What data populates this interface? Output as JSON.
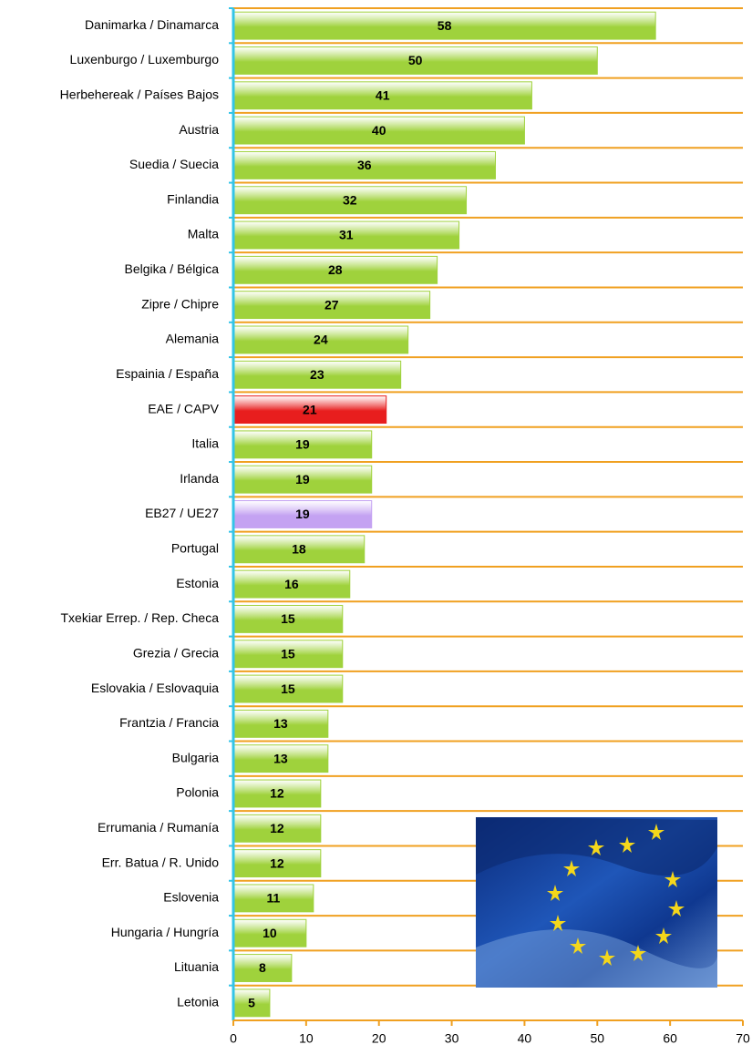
{
  "chart_data": {
    "type": "barh",
    "categories": [
      "Danimarka / Dinamarca",
      "Luxenburgo / Luxemburgo",
      "Herbehereak / Países Bajos",
      "Austria",
      "Suedia / Suecia",
      "Finlandia",
      "Malta",
      "Belgika / Bélgica",
      "Zipre / Chipre",
      "Alemania",
      "Espainia / España",
      "EAE / CAPV",
      "Italia",
      "Irlanda",
      "EB27 / UE27",
      "Portugal",
      "Estonia",
      "Txekiar Errep. / Rep. Checa",
      "Grezia / Grecia",
      "Eslovakia / Eslovaquia",
      "Frantzia / Francia",
      "Bulgaria",
      "Polonia",
      "Errumania / Rumanía",
      "Err. Batua / R. Unido",
      "Eslovenia",
      "Hungaria / Hungría",
      "Lituania",
      "Letonia"
    ],
    "values": [
      58,
      50,
      41,
      40,
      36,
      32,
      31,
      28,
      27,
      24,
      23,
      21,
      19,
      19,
      19,
      18,
      16,
      15,
      15,
      15,
      13,
      13,
      12,
      12,
      12,
      11,
      10,
      8,
      5
    ],
    "colors": [
      "#9fd23c",
      "#9fd23c",
      "#9fd23c",
      "#9fd23c",
      "#9fd23c",
      "#9fd23c",
      "#9fd23c",
      "#9fd23c",
      "#9fd23c",
      "#9fd23c",
      "#9fd23c",
      "#e81e1e",
      "#9fd23c",
      "#9fd23c",
      "#c4a2f2",
      "#9fd23c",
      "#9fd23c",
      "#9fd23c",
      "#9fd23c",
      "#9fd23c",
      "#9fd23c",
      "#9fd23c",
      "#9fd23c",
      "#9fd23c",
      "#9fd23c",
      "#9fd23c",
      "#9fd23c",
      "#9fd23c",
      "#9fd23c"
    ],
    "xlim": [
      0,
      70
    ],
    "xticks": [
      0,
      10,
      20,
      30,
      40,
      50,
      60,
      70
    ]
  }
}
